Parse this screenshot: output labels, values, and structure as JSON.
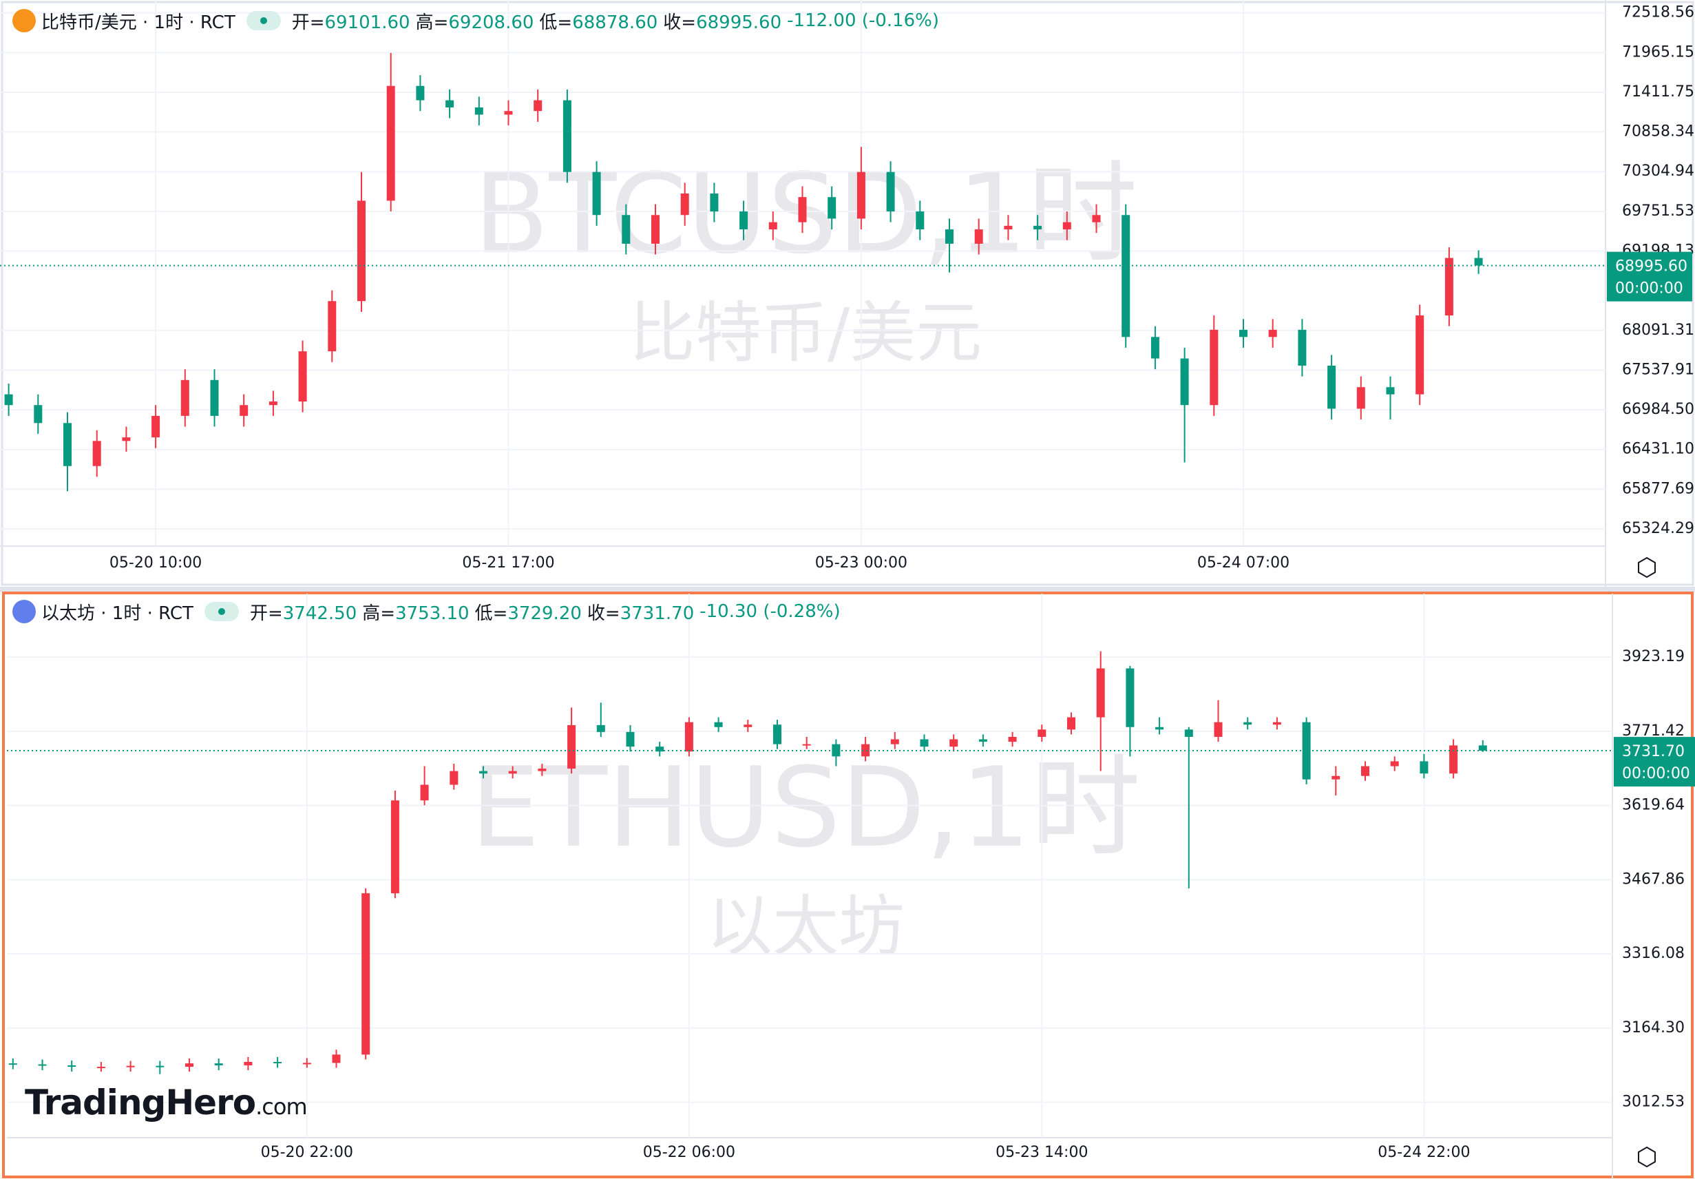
{
  "chart_data": [
    {
      "type": "candlestick",
      "header": {
        "name": "比特币/美元 · 1时 · RCT",
        "fields": [
          {
            "label": "开=",
            "value": "69101.60"
          },
          {
            "label": "高=",
            "value": "69208.60"
          },
          {
            "label": "低=",
            "value": "68878.60"
          },
          {
            "label": "收=",
            "value": "68995.60"
          }
        ],
        "change": "-112.00 (-0.16%)"
      },
      "watermark": "BTCUSD,1时",
      "watermark_sub": "比特币/美元",
      "last_price_label": "68995.60",
      "countdown": "00:00:00",
      "up_color": "#f23645",
      "down_color": "#089981",
      "categories": [
        null,
        null,
        null,
        null,
        null,
        "05-20 10:00",
        null,
        null,
        null,
        null,
        null,
        null,
        null,
        null,
        null,
        null,
        null,
        "05-21 17:00",
        null,
        null,
        null,
        null,
        null,
        null,
        null,
        null,
        null,
        null,
        null,
        "05-23 00:00",
        null,
        null,
        null,
        null,
        null,
        null,
        null,
        null,
        null,
        null,
        null,
        null,
        "05-24 07:00",
        null,
        null,
        null,
        null,
        null,
        null,
        null,
        null
      ],
      "open": [
        67200,
        67050,
        66800,
        66200,
        66550,
        66600,
        66900,
        67400,
        66900,
        67050,
        67100,
        67800,
        68500,
        69900,
        71500,
        71300,
        71200,
        71100,
        71150,
        71300,
        70300,
        69700,
        69300,
        69700,
        70000,
        69750,
        69500,
        69600,
        69950,
        69650,
        70300,
        69750,
        69500,
        69300,
        69500,
        69550,
        69500,
        69600,
        69700,
        68000,
        67700,
        67050,
        68100,
        68000,
        68100,
        67600,
        67000,
        67300,
        67200,
        68300,
        69101.6
      ],
      "high": [
        67350,
        67200,
        66950,
        66700,
        66750,
        67050,
        67550,
        67550,
        67200,
        67250,
        67950,
        68650,
        70300,
        71960,
        71650,
        71450,
        71350,
        71300,
        71450,
        71450,
        70450,
        69850,
        69850,
        70150,
        70150,
        69900,
        69750,
        70100,
        70100,
        70650,
        70450,
        69900,
        69650,
        69650,
        69700,
        69700,
        69750,
        69850,
        69850,
        68150,
        67850,
        68300,
        68250,
        68250,
        68250,
        67750,
        67450,
        67450,
        68450,
        69250,
        69208.6
      ],
      "low": [
        66900,
        66650,
        65850,
        66050,
        66400,
        66450,
        66750,
        66750,
        66750,
        66900,
        66950,
        67650,
        68350,
        69750,
        71150,
        71050,
        70950,
        70950,
        71000,
        70150,
        69550,
        69150,
        69150,
        69550,
        69600,
        69350,
        69350,
        69450,
        69500,
        69500,
        69600,
        69350,
        68900,
        69150,
        69350,
        69350,
        69350,
        69450,
        67850,
        67550,
        66250,
        66900,
        67850,
        67850,
        67450,
        66850,
        66850,
        66850,
        67050,
        68150,
        68878.6
      ],
      "close": [
        67050,
        66800,
        66200,
        66550,
        66600,
        66900,
        67400,
        66900,
        67050,
        67100,
        67800,
        68500,
        69900,
        71500,
        71300,
        71200,
        71100,
        71150,
        71300,
        70300,
        69700,
        69300,
        69700,
        70000,
        69750,
        69500,
        69600,
        69950,
        69650,
        70300,
        69750,
        69500,
        69300,
        69500,
        69550,
        69500,
        69600,
        69700,
        68000,
        67700,
        67050,
        68100,
        68000,
        68100,
        67600,
        67000,
        67300,
        67200,
        68300,
        69101.6,
        68995.6
      ],
      "ylim": [
        65084,
        72698
      ],
      "yticks": [
        72518.56,
        71965.15,
        71411.75,
        70858.34,
        70304.94,
        69751.53,
        69198.13,
        68091.31,
        67537.91,
        {
          "value": 66984.5,
          "label": "66984.50"
        },
        {
          "value": 66431.1,
          "label": "66431.10"
        },
        65877.69,
        65324.29
      ],
      "grid": true
    },
    {
      "type": "candlestick",
      "header": {
        "name": "以太坊 · 1时 · RCT",
        "fields": [
          {
            "label": "开=",
            "value": "3742.50"
          },
          {
            "label": "高=",
            "value": "3753.10"
          },
          {
            "label": "低=",
            "value": "3729.20"
          },
          {
            "label": "收=",
            "value": "3731.70"
          }
        ],
        "change": "-10.30 (-0.28%)"
      },
      "watermark": "ETHUSD,1时",
      "watermark_sub": "以太坊",
      "last_price_label": "3731.70",
      "countdown": "00:00:00",
      "up_color": "#f23645",
      "down_color": "#089981",
      "categories": [
        null,
        null,
        null,
        null,
        null,
        null,
        null,
        null,
        null,
        null,
        "05-20 22:00",
        null,
        null,
        null,
        null,
        null,
        null,
        null,
        null,
        null,
        null,
        null,
        null,
        "05-22 06:00",
        null,
        null,
        null,
        null,
        null,
        null,
        null,
        null,
        null,
        null,
        null,
        "05-23 14:00",
        null,
        null,
        null,
        null,
        null,
        null,
        null,
        null,
        null,
        null,
        null,
        null,
        "05-24 22:00",
        null,
        null
      ],
      "open": [
        3092,
        3090,
        3088,
        3085,
        3085,
        3087,
        3085,
        3092,
        3088,
        3095,
        3093,
        3093,
        3110,
        3440,
        3630,
        3662,
        3690,
        3685,
        3690,
        3695,
        3784,
        3770,
        3740,
        3730,
        3790,
        3780,
        3785,
        3745,
        3745,
        3720,
        3745,
        3755,
        3740,
        3755,
        3750,
        3760,
        3775,
        3800,
        3900,
        3780,
        3775,
        3760,
        3790,
        3785,
        3790,
        3673,
        3680,
        3700,
        3710,
        3685,
        3742.5
      ],
      "high": [
        3102,
        3100,
        3098,
        3095,
        3097,
        3097,
        3102,
        3102,
        3105,
        3105,
        3103,
        3120,
        3450,
        3650,
        3700,
        3705,
        3700,
        3700,
        3705,
        3820,
        3830,
        3784,
        3750,
        3800,
        3800,
        3795,
        3795,
        3760,
        3755,
        3760,
        3770,
        3765,
        3765,
        3765,
        3770,
        3785,
        3810,
        3935,
        3905,
        3800,
        3780,
        3835,
        3800,
        3800,
        3800,
        3700,
        3710,
        3720,
        3725,
        3755,
        3753.1
      ],
      "low": [
        3080,
        3078,
        3075,
        3075,
        3075,
        3070,
        3075,
        3078,
        3078,
        3083,
        3083,
        3083,
        3100,
        3430,
        3620,
        3652,
        3675,
        3675,
        3680,
        3685,
        3760,
        3730,
        3720,
        3720,
        3770,
        3770,
        3735,
        3735,
        3700,
        3710,
        3735,
        3730,
        3730,
        3740,
        3740,
        3750,
        3765,
        3690,
        3720,
        3765,
        3450,
        3750,
        3775,
        3775,
        3663,
        3640,
        3670,
        3690,
        3675,
        3675,
        3729.2
      ],
      "close": [
        3090,
        3088,
        3085,
        3085,
        3087,
        3085,
        3092,
        3088,
        3095,
        3093,
        3093,
        3110,
        3440,
        3630,
        3662,
        3690,
        3685,
        3690,
        3695,
        3784,
        3770,
        3740,
        3730,
        3790,
        3780,
        3785,
        3745,
        3745,
        3720,
        3745,
        3755,
        3740,
        3755,
        3750,
        3760,
        3775,
        3800,
        3900,
        3780,
        3775,
        3760,
        3790,
        3785,
        3790,
        3673,
        3680,
        3700,
        3710,
        3685,
        3742.5,
        3731.7
      ],
      "ylim": [
        2940,
        4053
      ],
      "yticks": [
        3923.19,
        3771.42,
        3619.64,
        3467.86,
        3316.08,
        {
          "value": 3164.3,
          "label": "3164.30"
        },
        3012.53
      ],
      "grid": true
    }
  ],
  "logo": {
    "brand": "TradingHero",
    "suffix": ".com"
  }
}
